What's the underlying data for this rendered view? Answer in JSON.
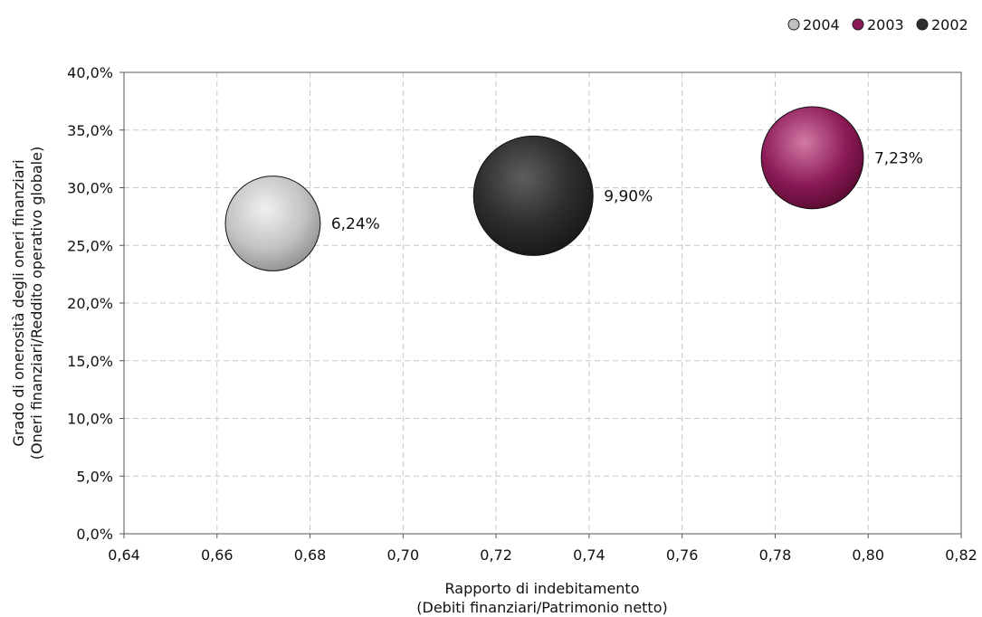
{
  "chart_data": {
    "type": "bubble",
    "xlabel": [
      "Rapporto di indebitamento",
      "(Debiti finanziari/Patrimonio netto)"
    ],
    "ylabel": [
      "Grado di onerosità degli oneri finanziari",
      "(Oneri finanziari/Reddito operativo globale)"
    ],
    "xlim": [
      0.64,
      0.82
    ],
    "ylim": [
      0,
      0.4
    ],
    "x_ticks": [
      "0,64",
      "0,66",
      "0,68",
      "0,70",
      "0,72",
      "0,74",
      "0,76",
      "0,78",
      "0,80",
      "0,82"
    ],
    "y_ticks": [
      "0,0%",
      "5,0%",
      "10,0%",
      "15,0%",
      "20,0%",
      "25,0%",
      "30,0%",
      "35,0%",
      "40,0%"
    ],
    "grid": true,
    "legend_position": "top-right",
    "series": [
      {
        "name": "2004",
        "x": 0.672,
        "y": 0.269,
        "size": 0.0624,
        "label": "6,24%",
        "color": "#c0c0c0"
      },
      {
        "name": "2003",
        "x": 0.788,
        "y": 0.326,
        "size": 0.0723,
        "label": "7,23%",
        "color": "#8b1a56"
      },
      {
        "name": "2002",
        "x": 0.728,
        "y": 0.293,
        "size": 0.099,
        "label": "9,90%",
        "color": "#2e2e2e"
      }
    ]
  }
}
